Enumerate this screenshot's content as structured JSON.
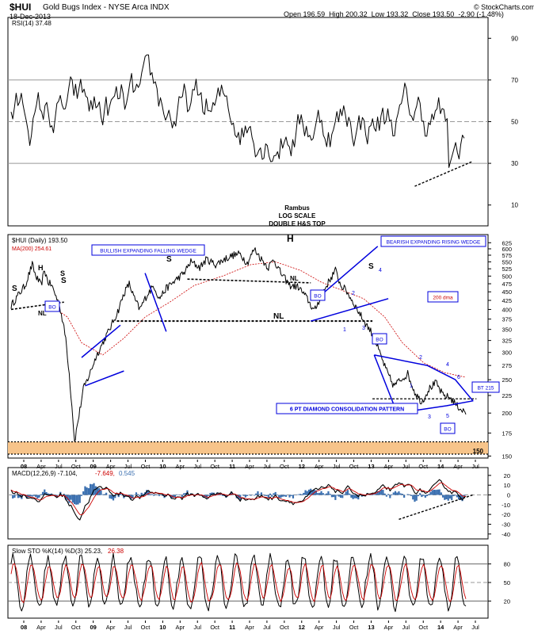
{
  "header": {
    "symbol": "$HUI",
    "name": "Gold Bugs Index - NYSE Arca INDX",
    "date": "18-Dec-2013",
    "open_label": "Open",
    "open": "196.59",
    "high_label": "High",
    "high": "200.32",
    "low_label": "Low",
    "low": "193.32",
    "close_label": "Close",
    "close": "193.50",
    "change": "-2.90 (-1.48%)",
    "watermark": "© StockCharts.com"
  },
  "chart_data": [
    {
      "type": "line",
      "legend": "RSI(14) 37.48",
      "yticks": [
        "90",
        "70",
        "50",
        "30",
        "10"
      ],
      "ylim": [
        0,
        100
      ],
      "lines": [
        70,
        50,
        30
      ]
    },
    {
      "type": "line",
      "legend_price": "$HUI (Daily) 193.50",
      "legend_ma": "MA(200) 254.61",
      "scale": "log",
      "ylim": [
        148,
        660
      ],
      "yticks": [
        "625",
        "600",
        "575",
        "550",
        "525",
        "500",
        "475",
        "450",
        "425",
        "400",
        "375",
        "350",
        "325",
        "300",
        "275",
        "250",
        "225",
        "200",
        "175",
        "150"
      ],
      "annotations": {
        "rambus": "Rambus",
        "log_scale": "LOG SCALE",
        "double_hs": "DOUBLE H&S TOP",
        "bullish_wedge": "BULLISH EXPANDING FALLING WEDGE",
        "bearish_wedge": "BEARISH EXPANDING RISING WEDGE",
        "dma": "200 dma",
        "diamond": "6 PT DIAMOND CONSOLIDATION PATTERN",
        "bt": "BT 215",
        "bo": "BO",
        "nl": "NL",
        "s": "S",
        "h": "H",
        "level150": "150",
        "n1": "1",
        "n2": "2",
        "n3": "3",
        "n4": "4",
        "n5": "5",
        "n6": "6"
      }
    },
    {
      "type": "line",
      "legend_macd": "MACD(12,26,9) -7.104,",
      "legend_signal": "-7.649,",
      "legend_hist": "0.545",
      "yticks": [
        "20",
        "10",
        "0",
        "-10",
        "-20",
        "-30",
        "-40"
      ],
      "ylim": [
        -45,
        28
      ]
    },
    {
      "type": "line",
      "legend_k": "Slow STO %K(14) %D(3) 25.23,",
      "legend_d": "26.38",
      "yticks": [
        "80",
        "50",
        "20"
      ],
      "ylim": [
        0,
        100
      ]
    }
  ],
  "x_axis": {
    "labels": [
      "08",
      "Apr",
      "Jul",
      "Oct",
      "09",
      "Apr",
      "Jul",
      "Oct",
      "10",
      "Apr",
      "Jul",
      "Oct",
      "11",
      "Apr",
      "Jul",
      "Oct",
      "12",
      "Apr",
      "Jul",
      "Oct",
      "13",
      "Apr",
      "Jul",
      "Oct",
      "14",
      "Apr",
      "Jul"
    ],
    "bold": [
      true,
      false,
      false,
      false,
      true,
      false,
      false,
      false,
      true,
      false,
      false,
      false,
      true,
      false,
      false,
      false,
      true,
      false,
      false,
      false,
      true,
      false,
      false,
      false,
      true,
      false,
      false
    ]
  },
  "colors": {
    "price": "#000000",
    "ma": "#cc0000",
    "trend": "#0000dd",
    "macd_hist": "#3a6fb0",
    "signal": "#cc0000",
    "band": "#f7c48a"
  }
}
